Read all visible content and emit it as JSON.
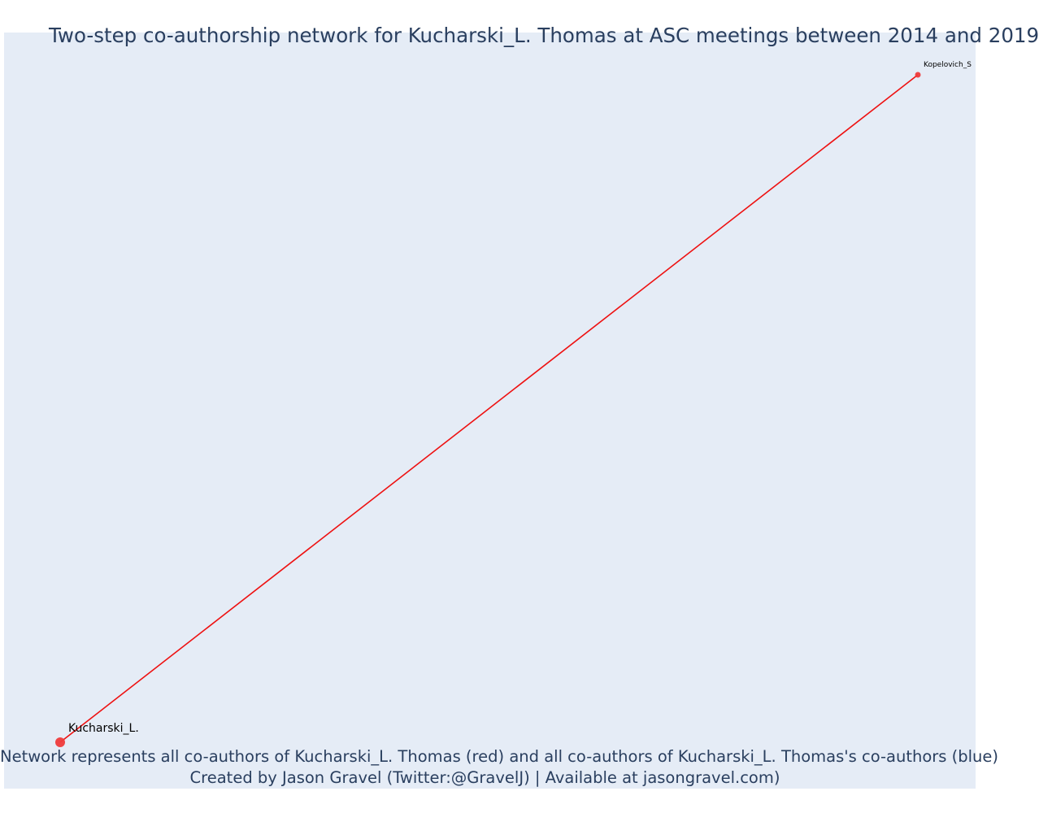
{
  "title": "Two-step co-authorship network for Kucharski_L. Thomas at ASC meetings between 2014 and 2019",
  "footer": {
    "line1": "Network represents all co-authors of Kucharski_L. Thomas (red) and all co-authors of Kucharski_L. Thomas's co-authors (blue)",
    "line2": "Created by Jason Gravel (Twitter:@GravelJ) | Available at jasongravel.com)"
  },
  "colors": {
    "plot_background": "#e5ecf6",
    "edge": "#ee1111",
    "node": "#ef3b3b",
    "text": "#2a3f5f"
  },
  "network": {
    "nodes": [
      {
        "id": "kucharski",
        "label": "Kucharski_L.",
        "group": "focal"
      },
      {
        "id": "kopelovich",
        "label": "Kopelovich_S",
        "group": "co-author"
      }
    ],
    "edges": [
      {
        "source": "kucharski",
        "target": "kopelovich"
      }
    ]
  }
}
